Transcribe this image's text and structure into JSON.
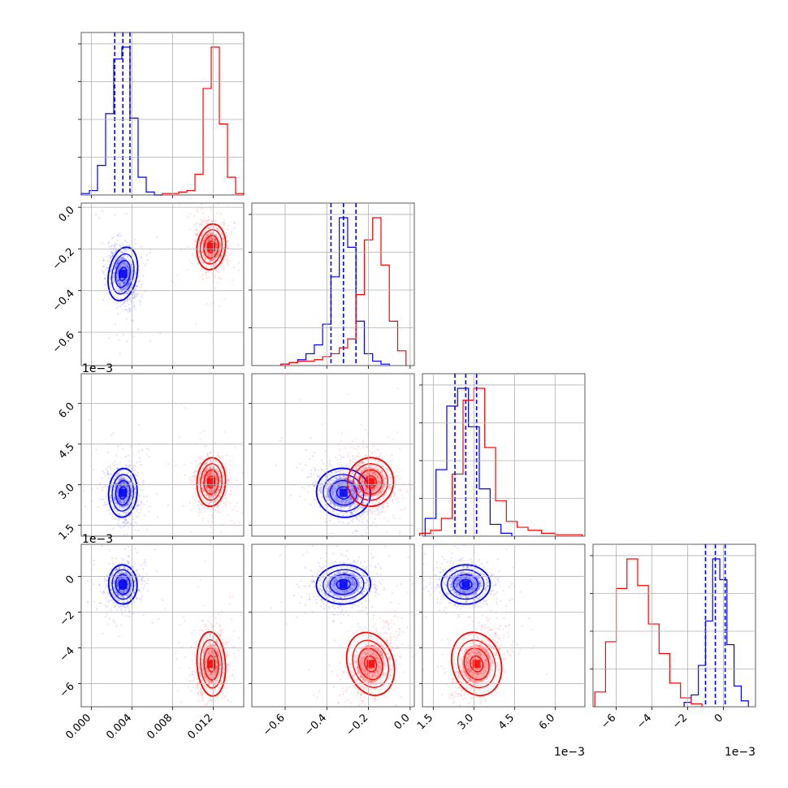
{
  "chart_data": {
    "type": "corner",
    "title": "",
    "series": [
      {
        "color": "#0000ff",
        "params": {
          "p0": {
            "mean": 0.0031,
            "sd": 0.0007,
            "q": [
              0.0023,
              0.0031,
              0.0038
            ]
          },
          "p1": {
            "mean": -0.32,
            "sd": 0.065,
            "q": [
              -0.38,
              -0.32,
              -0.26
            ]
          },
          "p2": {
            "mean": 0.0027,
            "sd": 0.00045,
            "q": [
              0.0023,
              0.0027,
              0.0031
            ]
          },
          "p3": {
            "mean": -0.00045,
            "sd": 0.00055,
            "q": [
              -0.001,
              -0.00045,
              0.0001
            ]
          }
        },
        "hist": {
          "p0": {
            "edges": [
              -0.001,
              -0.0002,
              0.0006,
              0.0014,
              0.0022,
              0.003,
              0.0038,
              0.0046,
              0.0054,
              0.0062,
              0.007
            ],
            "counts": [
              1,
              3,
              20,
              55,
              92,
              100,
              52,
              12,
              2,
              0
            ]
          },
          "p1": {
            "edges": [
              -0.62,
              -0.58,
              -0.54,
              -0.5,
              -0.46,
              -0.42,
              -0.38,
              -0.34,
              -0.3,
              -0.26,
              -0.22,
              -0.18,
              -0.14,
              -0.1
            ],
            "counts": [
              1,
              2,
              4,
              8,
              14,
              28,
              60,
              100,
              80,
              30,
              8,
              3,
              1
            ]
          },
          "p2": {
            "edges": [
              0.0012,
              0.0016,
              0.002,
              0.0024,
              0.0028,
              0.0032,
              0.0036,
              0.004,
              0.0044
            ],
            "counts": [
              12,
              45,
              88,
              100,
              74,
              32,
              8,
              2
            ]
          },
          "p3": {
            "edges": [
              -0.0022,
              -0.0018,
              -0.0014,
              -0.001,
              -0.0006,
              -0.0002,
              0.0002,
              0.0006,
              0.001,
              0.0014
            ],
            "counts": [
              3,
              8,
              28,
              58,
              100,
              86,
              42,
              14,
              4
            ]
          }
        }
      },
      {
        "color": "#ff0000",
        "params": {
          "p0": {
            "mean": 0.0118,
            "sd": 0.0007
          },
          "p1": {
            "mean": -0.19,
            "sd": 0.055
          },
          "p2": {
            "mean": 0.0031,
            "sd": 0.00045
          },
          "p3": {
            "mean": -0.0049,
            "sd": 0.0009
          }
        },
        "hist": {
          "p0": {
            "edges": [
              0.007,
              0.0078,
              0.0086,
              0.0094,
              0.0102,
              0.011,
              0.0118,
              0.0126,
              0.0134,
              0.0142,
              0.015
            ],
            "counts": [
              1,
              1,
              2,
              3,
              14,
              72,
              100,
              48,
              12,
              1
            ]
          },
          "p1": {
            "edges": [
              -0.62,
              -0.58,
              -0.54,
              -0.5,
              -0.46,
              -0.42,
              -0.38,
              -0.34,
              -0.3,
              -0.26,
              -0.22,
              -0.18,
              -0.14,
              -0.1,
              -0.06,
              -0.02
            ],
            "counts": [
              1,
              2,
              3,
              3,
              4,
              6,
              8,
              12,
              18,
              48,
              85,
              100,
              68,
              30,
              10
            ]
          },
          "p2": {
            "edges": [
              0.001,
              0.0014,
              0.0018,
              0.0022,
              0.0026,
              0.003,
              0.0034,
              0.0038,
              0.0042,
              0.0046,
              0.005,
              0.0055,
              0.006,
              0.0065,
              0.007
            ],
            "counts": [
              2,
              4,
              12,
              42,
              92,
              100,
              60,
              24,
              10,
              6,
              4,
              2,
              1,
              1
            ]
          },
          "p3": {
            "edges": [
              -0.0072,
              -0.0066,
              -0.006,
              -0.0054,
              -0.0048,
              -0.0042,
              -0.0036,
              -0.003,
              -0.0024,
              -0.0018,
              -0.0012
            ],
            "counts": [
              10,
              44,
              80,
              100,
              82,
              56,
              36,
              16,
              6,
              2
            ]
          }
        }
      }
    ],
    "axes": {
      "p0": {
        "range": [
          -0.001,
          0.015
        ],
        "ticks": [
          "0.000",
          "0.004",
          "0.008",
          "0.012"
        ],
        "tick_values": [
          0,
          0.004,
          0.008,
          0.012
        ]
      },
      "p1": {
        "range": [
          -0.76,
          0.02
        ],
        "ticks": [
          "−0.6",
          "−0.4",
          "−0.2",
          "0.0"
        ],
        "tick_values": [
          -0.6,
          -0.4,
          -0.2,
          0.0
        ]
      },
      "p2": {
        "range": [
          0.0011,
          0.0071
        ],
        "ticks": [
          "1.5",
          "3.0",
          "4.5",
          "6.0"
        ],
        "tick_values": [
          0.0015,
          0.003,
          0.0045,
          0.006
        ],
        "offset_text": "1e−3"
      },
      "p3": {
        "range": [
          -0.0073,
          0.0018
        ],
        "ticks": [
          "−6",
          "−4",
          "−2",
          "0"
        ],
        "tick_values": [
          -0.006,
          -0.004,
          -0.002,
          0.0
        ],
        "offset_text": "1e−3"
      }
    },
    "order": [
      "p0",
      "p1",
      "p2",
      "p3"
    ],
    "grid": true,
    "quantile_lines": "dashed, blue series only",
    "contour_levels": [
      0.5,
      1.0,
      1.5,
      2.0
    ]
  }
}
